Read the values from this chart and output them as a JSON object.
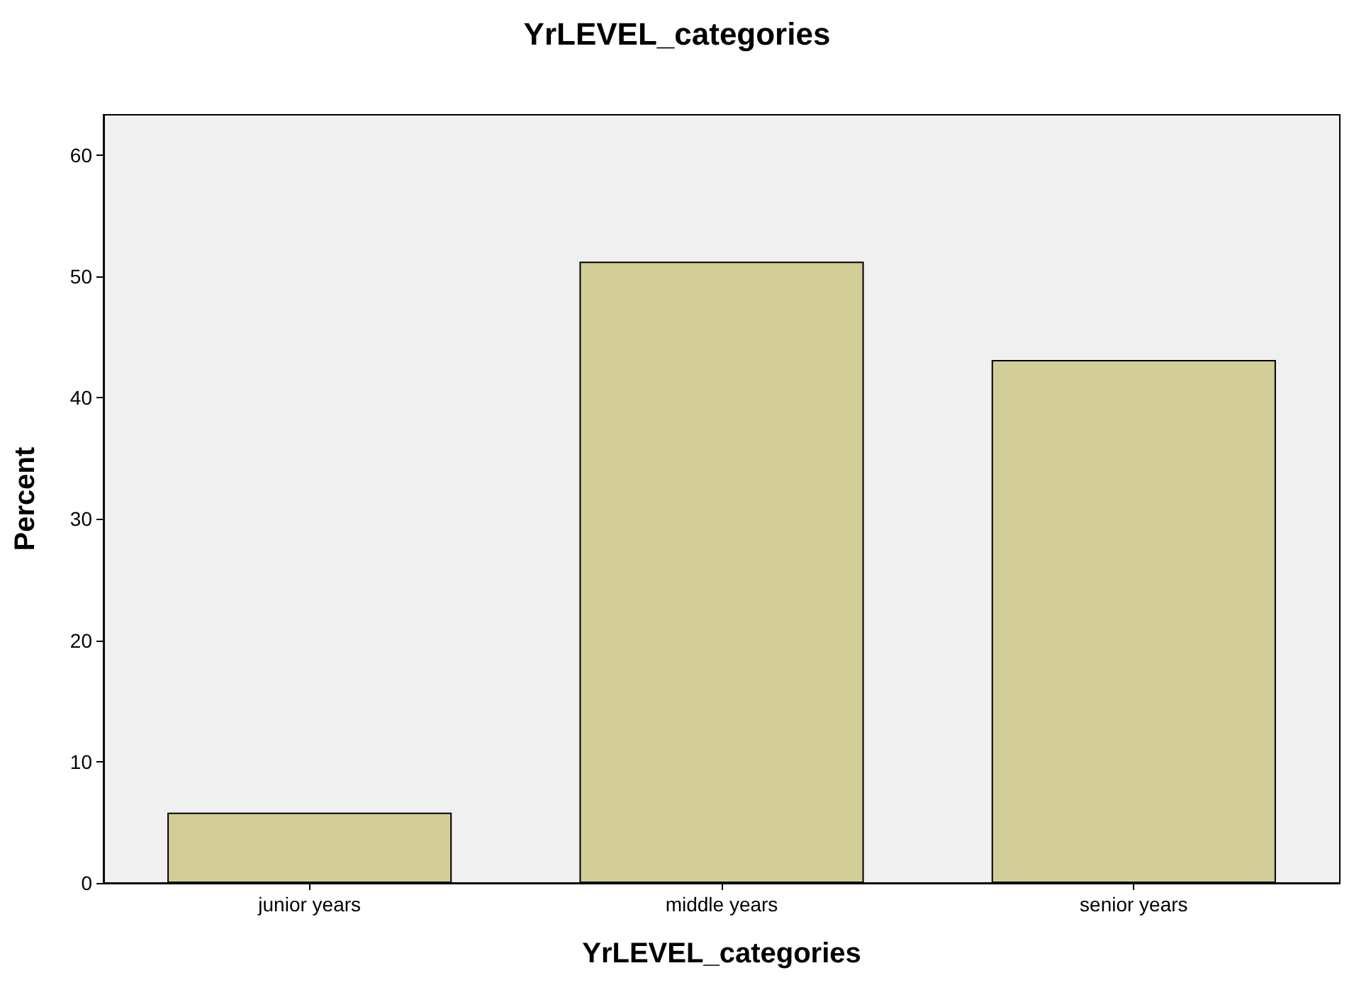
{
  "chart_data": {
    "type": "bar",
    "title": "YrLEVEL_categories",
    "xlabel": "YrLEVEL_categories",
    "ylabel": "Percent",
    "categories": [
      "junior years",
      "middle years",
      "senior years"
    ],
    "values": [
      5.8,
      51.2,
      43.1
    ],
    "color": "#d3ce97",
    "ylim": [
      0,
      63.3
    ],
    "yticks": [
      0,
      10,
      20,
      30,
      40,
      50,
      60
    ],
    "grid": false
  }
}
